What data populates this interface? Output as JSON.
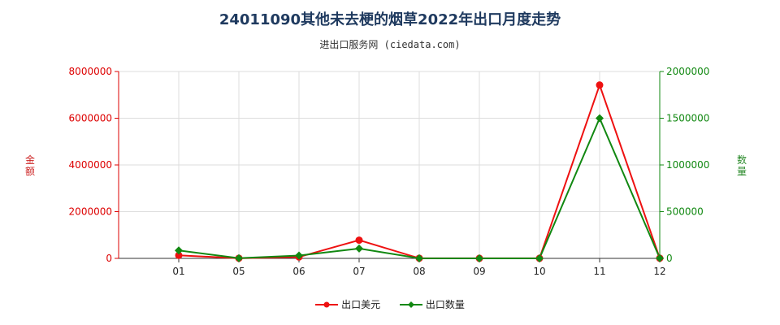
{
  "header": {
    "title": "24011090其他未去梗的烟草2022年出口月度走势",
    "subtitle": "进出口服务网 (ciedata.com)"
  },
  "colors": {
    "left_axis": "#dd0000",
    "right_axis": "#118811",
    "usd_series": "#ee1111",
    "qty_series": "#118811",
    "grid": "#dddddd"
  },
  "chart_data": {
    "type": "line",
    "title": "24011090其他未去梗的烟草2022年出口月度走势",
    "categories": [
      "01",
      "05",
      "06",
      "07",
      "08",
      "09",
      "10",
      "11",
      "12"
    ],
    "y_left": {
      "label": "金额",
      "ylim": [
        0,
        8000000
      ],
      "ticks": [
        "0",
        "2000000",
        "4000000",
        "6000000",
        "8000000"
      ]
    },
    "y_right": {
      "label": "数量",
      "ylim": [
        0,
        2000000
      ],
      "ticks": [
        "0",
        "500000",
        "1000000",
        "1500000",
        "2000000"
      ]
    },
    "series": [
      {
        "name": "出口美元",
        "axis": "left",
        "values": [
          130000,
          5000,
          60000,
          780000,
          5000,
          3000,
          3000,
          7420000,
          8000
        ]
      },
      {
        "name": "出口数量",
        "axis": "right",
        "values": [
          85000,
          2000,
          30000,
          105000,
          1000,
          500,
          500,
          1500000,
          2000
        ]
      }
    ],
    "grid": true,
    "legend": "bottom-center"
  }
}
